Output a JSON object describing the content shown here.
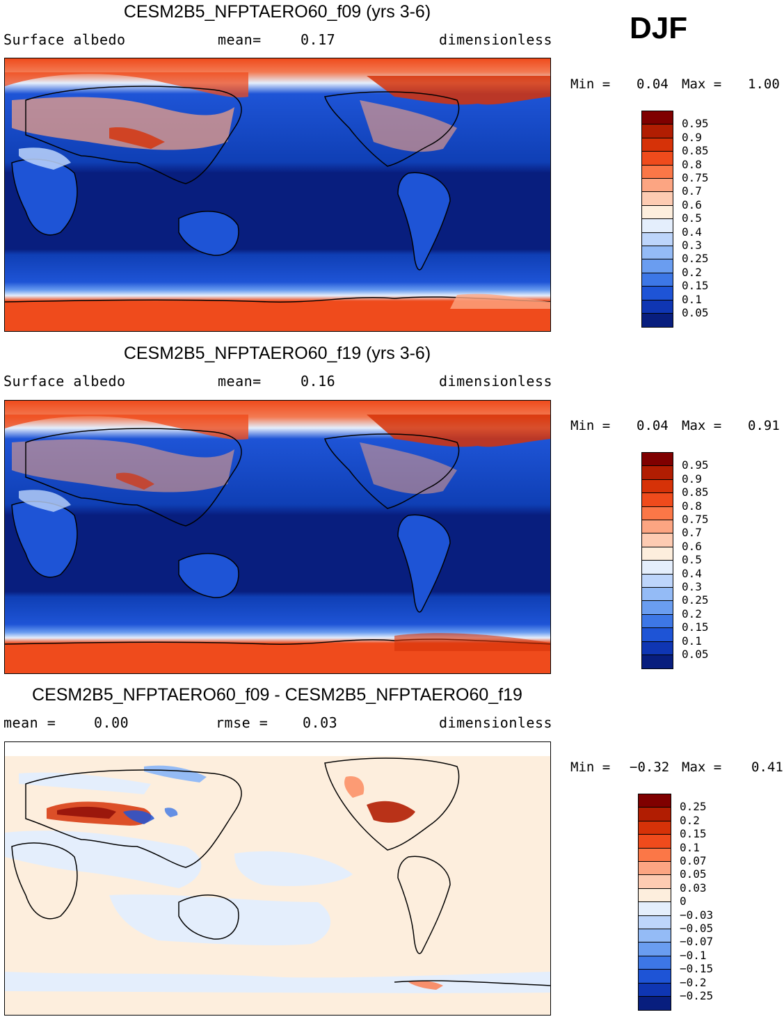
{
  "season": "DJF",
  "colors": {
    "ocean_deep": "#0a1f7a",
    "ocean_mid": "#0f3fb5",
    "land_blue": "#1f5fd6",
    "ice": "#ef4b1c",
    "neutral": "#ffe9d6",
    "neutral_blue": "#dce9fb"
  },
  "panels": [
    {
      "title": "CESM2B5_NFPTAERO60_f09 (yrs 3-6)",
      "left": "Surface albedo",
      "middle_label": "mean=",
      "middle_value": "0.17",
      "right_label": "",
      "right_value": "",
      "units": "dimensionless",
      "min_label": "Min =",
      "min_value": "0.04",
      "max_label": "Max =",
      "max_value": "1.00",
      "colorbar": {
        "colors": [
          "#7f0000",
          "#b11d02",
          "#d63208",
          "#ef4b1c",
          "#fb7747",
          "#fca582",
          "#fdcbb2",
          "#fdeedd",
          "#e4eefc",
          "#bdd5fb",
          "#94bbf6",
          "#6a9df0",
          "#3d77e6",
          "#1e54d6",
          "#0f36b3",
          "#081e7e"
        ],
        "labels": [
          "0.95",
          "0.9",
          "0.85",
          "0.8",
          "0.75",
          "0.7",
          "0.6",
          "0.5",
          "0.4",
          "0.3",
          "0.25",
          "0.2",
          "0.15",
          "0.1",
          "0.05"
        ]
      }
    },
    {
      "title": "CESM2B5_NFPTAERO60_f19 (yrs 3-6)",
      "left": "Surface albedo",
      "middle_label": "mean=",
      "middle_value": "0.16",
      "right_label": "",
      "right_value": "",
      "units": "dimensionless",
      "min_label": "Min =",
      "min_value": "0.04",
      "max_label": "Max =",
      "max_value": "0.91",
      "colorbar": {
        "colors": [
          "#7f0000",
          "#b11d02",
          "#d63208",
          "#ef4b1c",
          "#fb7747",
          "#fca582",
          "#fdcbb2",
          "#fdeedd",
          "#e4eefc",
          "#bdd5fb",
          "#94bbf6",
          "#6a9df0",
          "#3d77e6",
          "#1e54d6",
          "#0f36b3",
          "#081e7e"
        ],
        "labels": [
          "0.95",
          "0.9",
          "0.85",
          "0.8",
          "0.75",
          "0.7",
          "0.6",
          "0.5",
          "0.4",
          "0.3",
          "0.25",
          "0.2",
          "0.15",
          "0.1",
          "0.05"
        ]
      }
    },
    {
      "title": "CESM2B5_NFPTAERO60_f09 - CESM2B5_NFPTAERO60_f19",
      "left": "mean =",
      "middle_label": "0.00",
      "middle_value": "",
      "right_label": "rmse =",
      "right_value": "0.03",
      "units": "dimensionless",
      "min_label": "Min =",
      "min_value": "−0.32",
      "max_label": "Max =",
      "max_value": "0.41",
      "colorbar": {
        "colors": [
          "#7f0000",
          "#b11d02",
          "#d63208",
          "#ef4b1c",
          "#fb7747",
          "#fca582",
          "#fdcbb2",
          "#fdeedd",
          "#e4eefc",
          "#bdd5fb",
          "#94bbf6",
          "#6a9df0",
          "#3d77e6",
          "#1e54d6",
          "#0f36b3",
          "#081e7e"
        ],
        "labels": [
          "0.25",
          "0.2",
          "0.15",
          "0.1",
          "0.07",
          "0.05",
          "0.03",
          "0",
          "−0.03",
          "−0.05",
          "−0.07",
          "−0.1",
          "−0.15",
          "−0.2",
          "−0.25"
        ]
      }
    }
  ],
  "chart_data": [
    {
      "type": "heatmap",
      "title": "CESM2B5_NFPTAERO60_f09 (yrs 3-6)",
      "variable": "Surface albedo",
      "units": "dimensionless",
      "mean": 0.17,
      "min": 0.04,
      "max": 1.0,
      "levels": [
        0.05,
        0.1,
        0.15,
        0.2,
        0.25,
        0.3,
        0.4,
        0.5,
        0.6,
        0.7,
        0.75,
        0.8,
        0.85,
        0.9,
        0.95
      ]
    },
    {
      "type": "heatmap",
      "title": "CESM2B5_NFPTAERO60_f19 (yrs 3-6)",
      "variable": "Surface albedo",
      "units": "dimensionless",
      "mean": 0.16,
      "min": 0.04,
      "max": 0.91,
      "levels": [
        0.05,
        0.1,
        0.15,
        0.2,
        0.25,
        0.3,
        0.4,
        0.5,
        0.6,
        0.7,
        0.75,
        0.8,
        0.85,
        0.9,
        0.95
      ]
    },
    {
      "type": "heatmap",
      "title": "CESM2B5_NFPTAERO60_f09 - CESM2B5_NFPTAERO60_f19",
      "units": "dimensionless",
      "mean": 0.0,
      "rmse": 0.03,
      "min": -0.32,
      "max": 0.41,
      "levels": [
        -0.25,
        -0.2,
        -0.15,
        -0.1,
        -0.07,
        -0.05,
        -0.03,
        0,
        0.03,
        0.05,
        0.07,
        0.1,
        0.15,
        0.2,
        0.25
      ]
    }
  ]
}
